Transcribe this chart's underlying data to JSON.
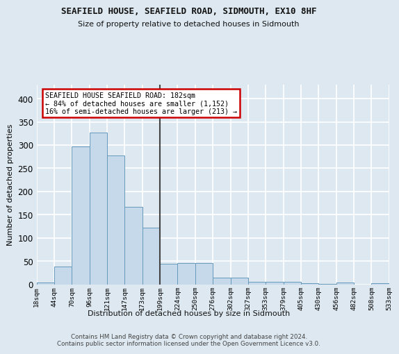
{
  "title": "SEAFIELD HOUSE, SEAFIELD ROAD, SIDMOUTH, EX10 8HF",
  "subtitle": "Size of property relative to detached houses in Sidmouth",
  "xlabel": "Distribution of detached houses by size in Sidmouth",
  "ylabel": "Number of detached properties",
  "bar_values": [
    4,
    38,
    297,
    327,
    278,
    167,
    122,
    44,
    46,
    46,
    15,
    15,
    5,
    6,
    6,
    3,
    1,
    4,
    0,
    2
  ],
  "xtick_labels": [
    "18sqm",
    "44sqm",
    "70sqm",
    "96sqm",
    "121sqm",
    "147sqm",
    "173sqm",
    "199sqm",
    "224sqm",
    "250sqm",
    "276sqm",
    "302sqm",
    "327sqm",
    "353sqm",
    "379sqm",
    "405sqm",
    "430sqm",
    "456sqm",
    "482sqm",
    "508sqm",
    "533sqm"
  ],
  "bar_color": "#c6d9eb",
  "bar_edge_color": "#6699bb",
  "bg_color": "#dde8f0",
  "plot_bg_color": "#dde8f0",
  "grid_color": "#ffffff",
  "annotation_text": "SEAFIELD HOUSE SEAFIELD ROAD: 182sqm\n← 84% of detached houses are smaller (1,152)\n16% of semi-detached houses are larger (213) →",
  "annotation_box_color": "#ffffff",
  "annotation_border_color": "#cc0000",
  "vline_x": 6.5,
  "ylim": [
    0,
    430
  ],
  "yticks": [
    0,
    50,
    100,
    150,
    200,
    250,
    300,
    350,
    400
  ],
  "footer_text": "Contains HM Land Registry data © Crown copyright and database right 2024.\nContains public sector information licensed under the Open Government Licence v3.0."
}
